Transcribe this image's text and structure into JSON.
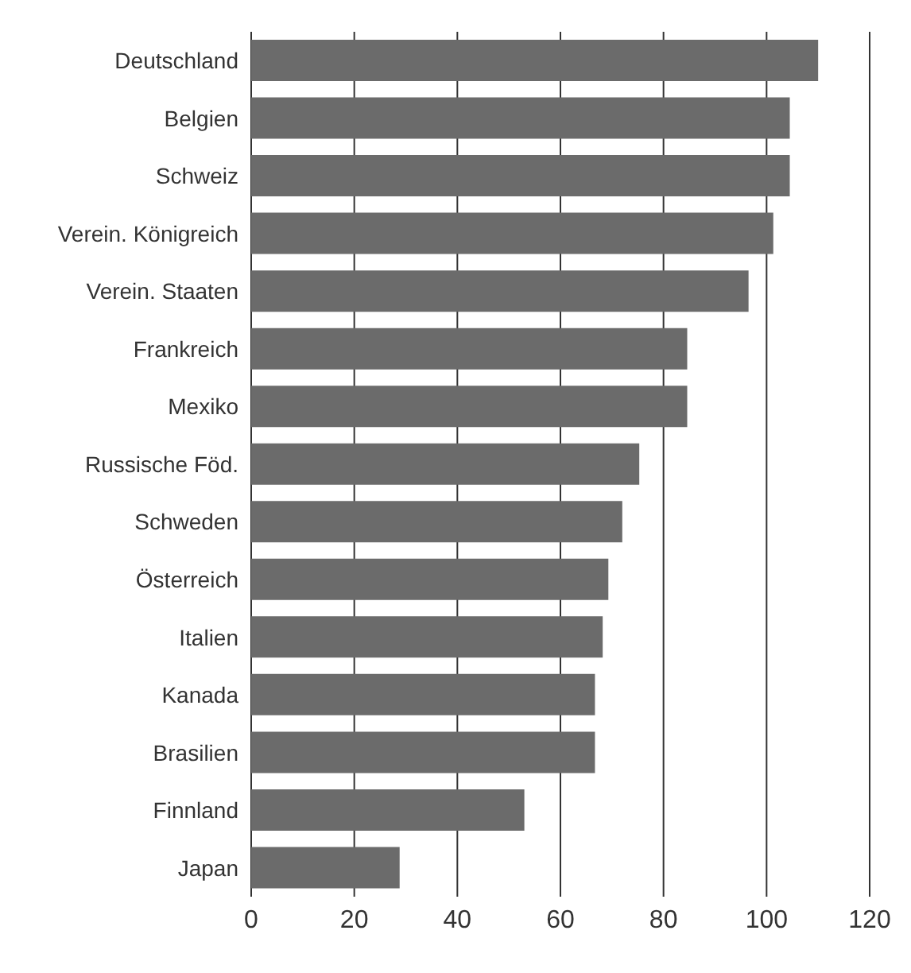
{
  "chart_data": {
    "type": "bar",
    "orientation": "horizontal",
    "categories": [
      "Deutschland",
      "Belgien",
      "Schweiz",
      "Verein. Königreich",
      "Verein. Staaten",
      "Frankreich",
      "Mexiko",
      "Russische Föd.",
      "Schweden",
      "Österreich",
      "Italien",
      "Kanada",
      "Brasilien",
      "Finnland",
      "Japan"
    ],
    "values": [
      110,
      104.5,
      104.5,
      101.3,
      96.5,
      84.6,
      84.6,
      75.3,
      72,
      69.3,
      68.2,
      66.7,
      66.7,
      53,
      28.8
    ],
    "color": "#6b6b6b",
    "xlim": [
      0,
      120
    ],
    "xticks": [
      0,
      20,
      40,
      60,
      80,
      100,
      120
    ],
    "grid": "x"
  }
}
